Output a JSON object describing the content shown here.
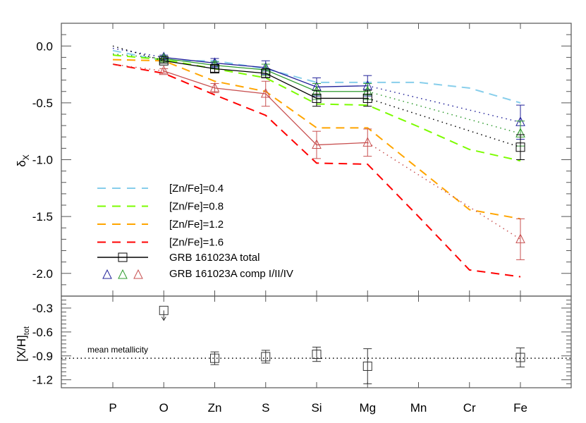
{
  "chart_data": [
    {
      "type": "line",
      "ylabel": "δ",
      "ylabel_sub": "X",
      "categories": [
        "P",
        "O",
        "Zn",
        "S",
        "Si",
        "Mg",
        "Mn",
        "Cr",
        "Fe"
      ],
      "ylim": [
        -2.2,
        0.2
      ],
      "yticks": [
        "0.0",
        "-0.5",
        "-1.0",
        "-1.5",
        "-2.0"
      ],
      "ytick_values": [
        0.0,
        -0.5,
        -1.0,
        -1.5,
        -2.0
      ],
      "legend_placement": "lower-left",
      "models": [
        {
          "name": "[Zn/Fe]=0.4",
          "color": "#87CEEB",
          "values": [
            -0.04,
            -0.13,
            -0.13,
            -0.2,
            -0.32,
            -0.32,
            -0.32,
            -0.37,
            -0.5
          ]
        },
        {
          "name": "[Zn/Fe]=0.8",
          "color": "#7CFC00",
          "values": [
            -0.08,
            -0.12,
            -0.2,
            -0.28,
            -0.51,
            -0.52,
            -0.71,
            -0.91,
            -1.01
          ]
        },
        {
          "name": "[Zn/Fe]=1.2",
          "color": "#FFA500",
          "values": [
            -0.12,
            -0.13,
            -0.31,
            -0.4,
            -0.72,
            -0.72,
            -1.08,
            -1.44,
            -1.52
          ]
        },
        {
          "name": "[Zn/Fe]=1.6",
          "color": "#FF0000",
          "values": [
            -0.16,
            -0.24,
            -0.43,
            -0.61,
            -1.03,
            -1.04,
            -1.5,
            -1.97,
            -2.03
          ]
        }
      ],
      "total": {
        "name": "GRB 161023A total",
        "color": "#000000",
        "extrapolated_P": 0.0,
        "points": [
          {
            "x": "O",
            "y": -0.13,
            "err": 0.02
          },
          {
            "x": "Zn",
            "y": -0.2,
            "err": 0.03
          },
          {
            "x": "S",
            "y": -0.24,
            "err": 0.04
          },
          {
            "x": "Si",
            "y": -0.46,
            "err": 0.07
          },
          {
            "x": "Mg",
            "y": -0.46,
            "err": 0.07
          },
          {
            "x": "Fe",
            "y": -0.89,
            "err": 0.11
          }
        ]
      },
      "components_label": "GRB 161023A comp I/II/IV",
      "components": [
        {
          "name": "I",
          "color": "#22229A",
          "extrapolated_P": -0.02,
          "points": [
            {
              "x": "O",
              "y": -0.1,
              "err": 0.02
            },
            {
              "x": "Zn",
              "y": -0.15,
              "err": 0.04
            },
            {
              "x": "S",
              "y": -0.19,
              "err": 0.06
            },
            {
              "x": "Si",
              "y": -0.36,
              "err": 0.08
            },
            {
              "x": "Mg",
              "y": -0.35,
              "err": 0.09
            },
            {
              "x": "Fe",
              "y": -0.67,
              "err": 0.15
            }
          ]
        },
        {
          "name": "II",
          "color": "#2E9B2E",
          "extrapolated_P": -0.07,
          "points": [
            {
              "x": "O",
              "y": -0.11,
              "err": 0.02
            },
            {
              "x": "Zn",
              "y": -0.17,
              "err": 0.03
            },
            {
              "x": "S",
              "y": -0.21,
              "err": 0.05
            },
            {
              "x": "Si",
              "y": -0.4,
              "err": 0.07
            },
            {
              "x": "Mg",
              "y": -0.4,
              "err": 0.07
            },
            {
              "x": "Fe",
              "y": -0.77,
              "err": 0.11
            }
          ]
        },
        {
          "name": "IV",
          "color": "#C85050",
          "extrapolated_P": -0.16,
          "points": [
            {
              "x": "O",
              "y": -0.22,
              "err": 0.02
            },
            {
              "x": "Zn",
              "y": -0.37,
              "err": 0.04
            },
            {
              "x": "S",
              "y": -0.42,
              "err": 0.11
            },
            {
              "x": "Si",
              "y": -0.87,
              "err": 0.12
            },
            {
              "x": "Mg",
              "y": -0.85,
              "err": 0.12
            },
            {
              "x": "Fe",
              "y": -1.7,
              "err": 0.18
            }
          ]
        }
      ]
    },
    {
      "type": "scatter",
      "ylabel": "[X/H]",
      "ylabel_sub": "tot",
      "categories": [
        "P",
        "O",
        "Zn",
        "S",
        "Si",
        "Mg",
        "Mn",
        "Cr",
        "Fe"
      ],
      "ylim": [
        -1.3,
        -0.15
      ],
      "yticks": [
        "-0.3",
        "-0.6",
        "-0.9",
        "-1.2"
      ],
      "ytick_values": [
        -0.3,
        -0.6,
        -0.9,
        -1.2
      ],
      "mean_metallicity": -0.93,
      "mean_label": "mean metallicity",
      "points": [
        {
          "x": "O",
          "y": -0.33,
          "upper_limit": true
        },
        {
          "x": "Zn",
          "y": -0.93,
          "err": 0.08
        },
        {
          "x": "S",
          "y": -0.91,
          "err": 0.08
        },
        {
          "x": "Si",
          "y": -0.88,
          "err": 0.09
        },
        {
          "x": "Mg",
          "y": -1.03,
          "err": 0.22
        },
        {
          "x": "Fe",
          "y": -0.92,
          "err": 0.12
        }
      ]
    }
  ]
}
